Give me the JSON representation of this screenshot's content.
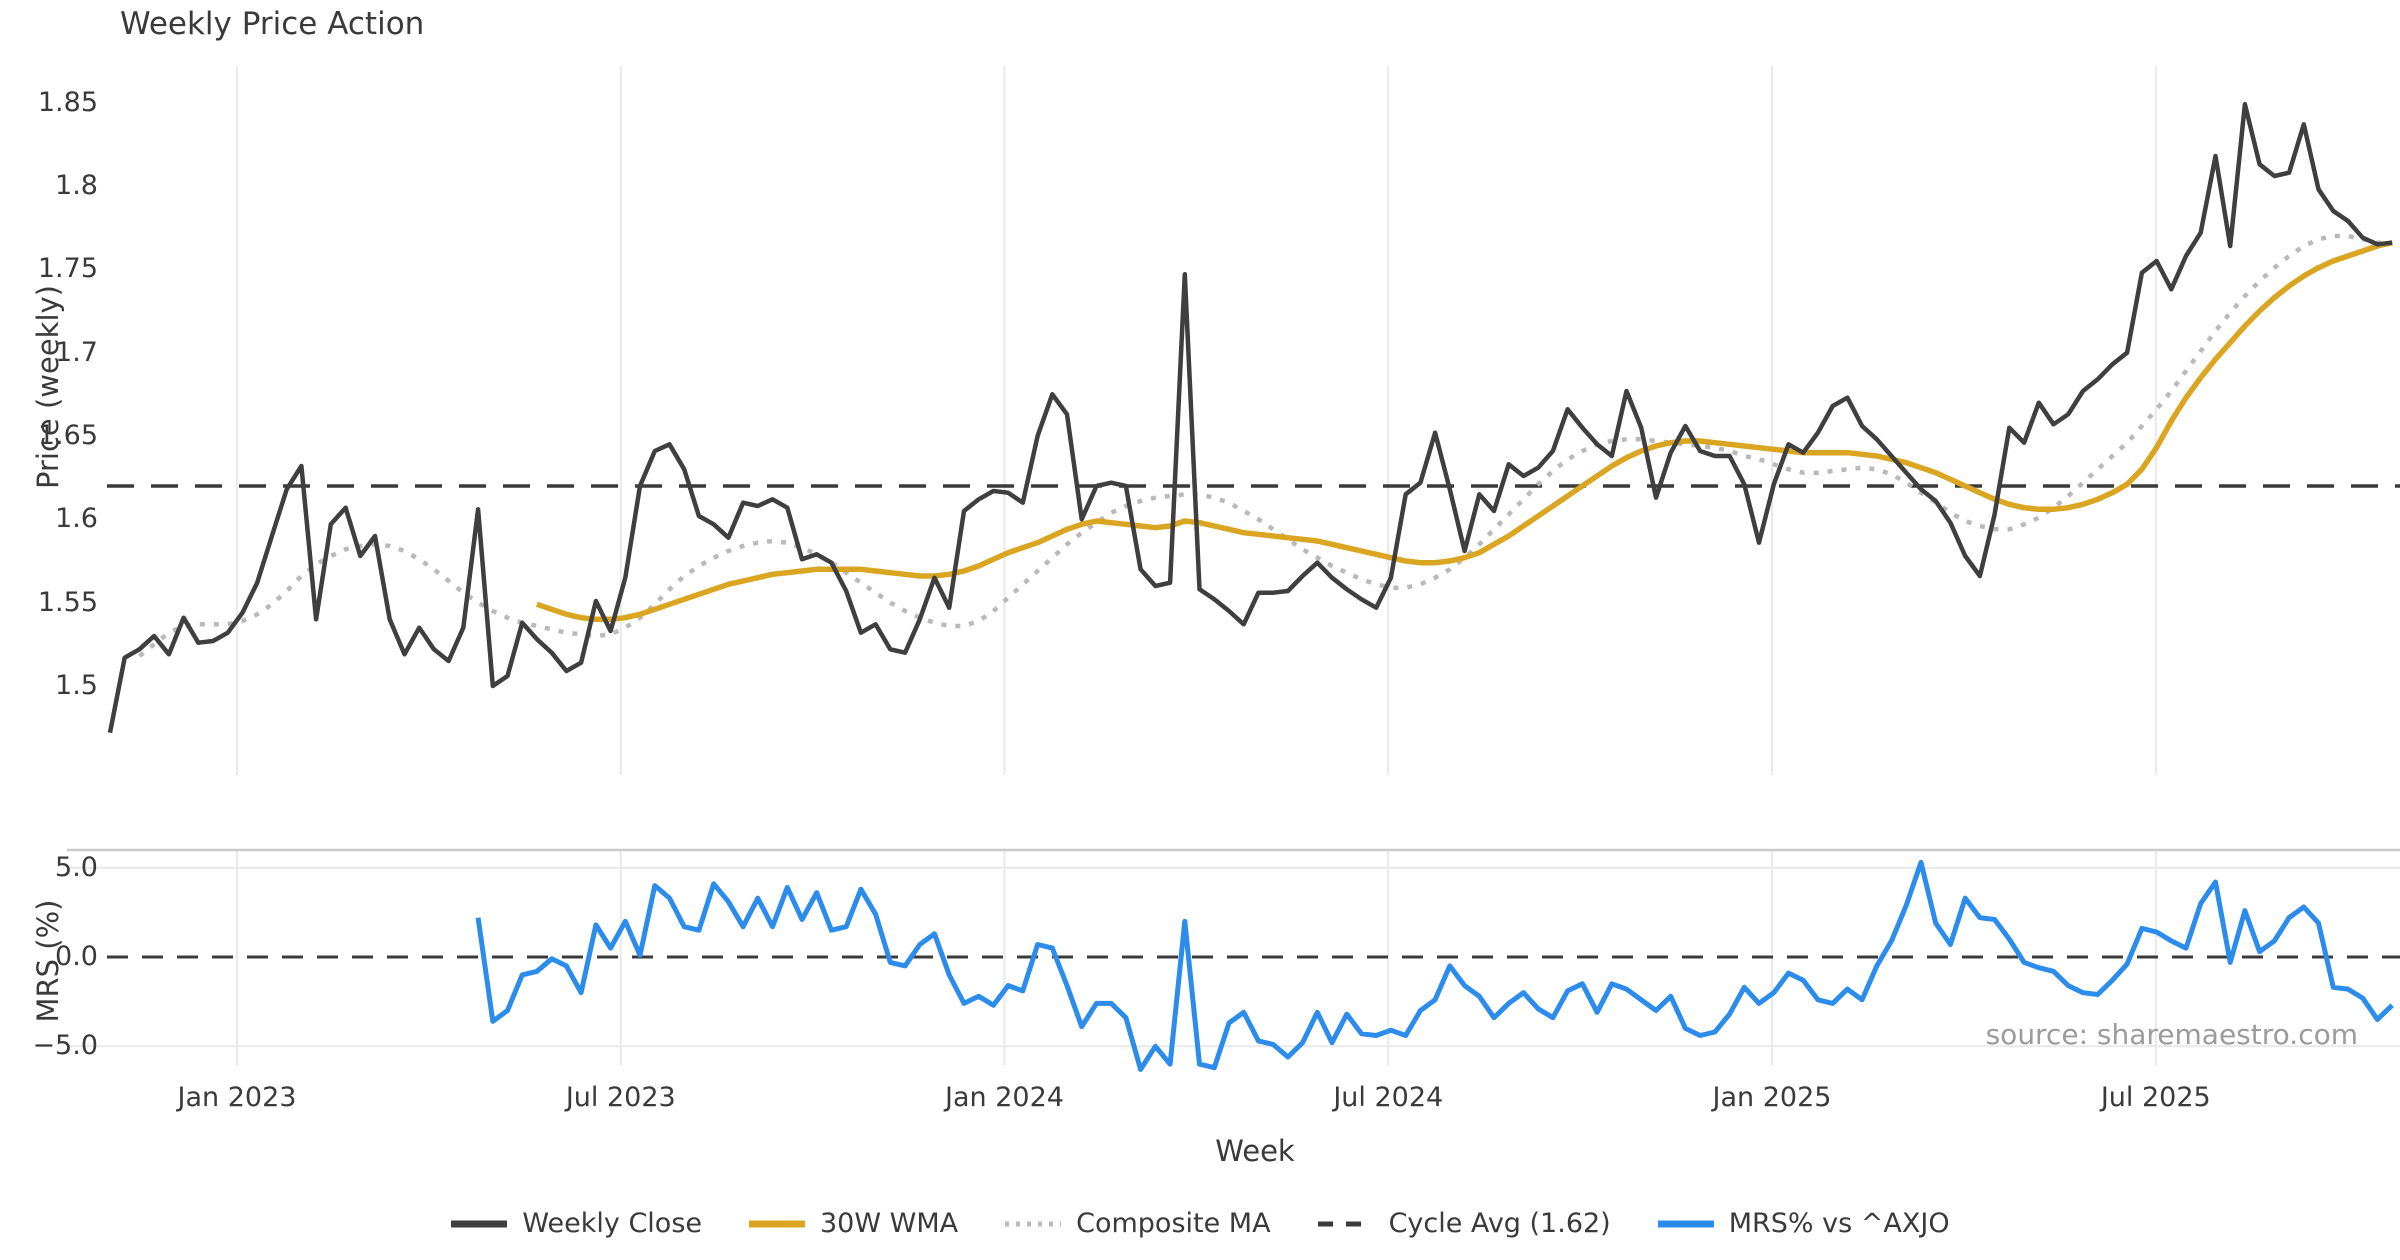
{
  "title": "Weekly Price Action",
  "source_note": "source: sharemaestro.com",
  "colors": {
    "close": "#3f3f3f",
    "wma": "#DAA520",
    "composite": "#b9b9b9",
    "cycle_avg": "#3a3a3a",
    "mrs": "#2b8ceb",
    "gridline": "#e9e9e9",
    "panel_border": "#c9c9c9",
    "text": "#3a3a3a",
    "muted_text": "#9b9b9b"
  },
  "chart_data": {
    "type": "line",
    "title": "Weekly Price Action",
    "xlabel": "Week",
    "grid": "vertical-both-panels",
    "legend_position": "bottom-center",
    "x_ticks": [
      {
        "t": 2023.0,
        "label": "Jan 2023"
      },
      {
        "t": 2023.5,
        "label": "Jul 2023"
      },
      {
        "t": 2024.0,
        "label": "Jan 2024"
      },
      {
        "t": 2024.5,
        "label": "Jul 2024"
      },
      {
        "t": 2025.0,
        "label": "Jan 2025"
      },
      {
        "t": 2025.5,
        "label": "Jul 2025"
      }
    ],
    "x_range": [
      2022.83,
      2025.82
    ],
    "panels": [
      {
        "name": "price",
        "ylabel": "Price (weekly)",
        "ylim": [
          1.447,
          1.872
        ],
        "yticks": [
          {
            "v": 1.5,
            "label": "1.5"
          },
          {
            "v": 1.55,
            "label": "1.55"
          },
          {
            "v": 1.6,
            "label": "1.6"
          },
          {
            "v": 1.65,
            "label": "1.65"
          },
          {
            "v": 1.7,
            "label": "1.7"
          },
          {
            "v": 1.75,
            "label": "1.75"
          },
          {
            "v": 1.8,
            "label": "1.8"
          },
          {
            "v": 1.85,
            "label": "1.85"
          }
        ],
        "cycle_avg_value": 1.62,
        "series": [
          {
            "name": "Weekly Close",
            "style": "solid",
            "color_key": "close",
            "width": 4.5,
            "t_start": 2022.8345,
            "t_step": 0.019184,
            "values": [
              1.472,
              1.517,
              1.522,
              1.53,
              1.519,
              1.541,
              1.526,
              1.527,
              1.532,
              1.544,
              1.562,
              1.59,
              1.618,
              1.632,
              1.54,
              1.597,
              1.607,
              1.578,
              1.59,
              1.54,
              1.519,
              1.535,
              1.522,
              1.515,
              1.535,
              1.606,
              1.5,
              1.506,
              1.538,
              1.528,
              1.52,
              1.509,
              1.514,
              1.551,
              1.533,
              1.565,
              1.62,
              1.641,
              1.645,
              1.63,
              1.602,
              1.597,
              1.589,
              1.61,
              1.608,
              1.612,
              1.607,
              1.576,
              1.579,
              1.574,
              1.557,
              1.532,
              1.537,
              1.522,
              1.52,
              1.54,
              1.565,
              1.547,
              1.605,
              1.612,
              1.617,
              1.616,
              1.61,
              1.65,
              1.675,
              1.663,
              1.6,
              1.62,
              1.622,
              1.62,
              1.57,
              1.56,
              1.562,
              1.747,
              1.558,
              1.552,
              1.545,
              1.537,
              1.556,
              1.556,
              1.557,
              1.566,
              1.574,
              1.565,
              1.558,
              1.552,
              1.547,
              1.565,
              1.615,
              1.622,
              1.652,
              1.618,
              1.581,
              1.615,
              1.605,
              1.633,
              1.626,
              1.631,
              1.641,
              1.666,
              1.655,
              1.645,
              1.638,
              1.677,
              1.655,
              1.613,
              1.64,
              1.656,
              1.641,
              1.638,
              1.638,
              1.621,
              1.586,
              1.621,
              1.645,
              1.64,
              1.652,
              1.668,
              1.673,
              1.656,
              1.648,
              1.638,
              1.628,
              1.618,
              1.611,
              1.598,
              1.578,
              1.566,
              1.603,
              1.655,
              1.646,
              1.67,
              1.657,
              1.663,
              1.677,
              1.684,
              1.693,
              1.7,
              1.748,
              1.755,
              1.738,
              1.758,
              1.772,
              1.818,
              1.764,
              1.849,
              1.813,
              1.806,
              1.808,
              1.837,
              1.798,
              1.785,
              1.779,
              1.769,
              1.765,
              1.766
            ]
          },
          {
            "name": "30W WMA",
            "style": "solid",
            "color_key": "wma",
            "width": 5.5,
            "t_start": 2023.3908,
            "t_step": 0.019184,
            "values": [
              1.549,
              1.546,
              1.543,
              1.541,
              1.54,
              1.54,
              1.541,
              1.543,
              1.546,
              1.549,
              1.552,
              1.555,
              1.558,
              1.561,
              1.563,
              1.565,
              1.567,
              1.568,
              1.569,
              1.57,
              1.57,
              1.57,
              1.57,
              1.569,
              1.568,
              1.567,
              1.566,
              1.566,
              1.567,
              1.569,
              1.572,
              1.576,
              1.58,
              1.583,
              1.586,
              1.59,
              1.594,
              1.597,
              1.599,
              1.598,
              1.597,
              1.596,
              1.595,
              1.596,
              1.599,
              1.598,
              1.596,
              1.594,
              1.592,
              1.591,
              1.59,
              1.589,
              1.588,
              1.587,
              1.585,
              1.583,
              1.581,
              1.579,
              1.577,
              1.575,
              1.574,
              1.574,
              1.575,
              1.577,
              1.58,
              1.585,
              1.59,
              1.596,
              1.602,
              1.608,
              1.614,
              1.62,
              1.626,
              1.632,
              1.637,
              1.641,
              1.644,
              1.646,
              1.647,
              1.647,
              1.646,
              1.645,
              1.644,
              1.643,
              1.642,
              1.641,
              1.64,
              1.64,
              1.64,
              1.64,
              1.639,
              1.638,
              1.636,
              1.634,
              1.631,
              1.628,
              1.624,
              1.62,
              1.616,
              1.612,
              1.609,
              1.607,
              1.606,
              1.606,
              1.607,
              1.609,
              1.612,
              1.616,
              1.621,
              1.63,
              1.643,
              1.659,
              1.673,
              1.685,
              1.696,
              1.706,
              1.716,
              1.725,
              1.733,
              1.74,
              1.746,
              1.751,
              1.755,
              1.758,
              1.761,
              1.764,
              1.766
            ]
          },
          {
            "name": "Composite MA",
            "style": "dotted",
            "color_key": "composite",
            "width": 4.5,
            "t_start": 2022.8729,
            "t_step": 0.019184,
            "values": [
              1.518,
              1.525,
              1.532,
              1.536,
              1.537,
              1.537,
              1.537,
              1.539,
              1.543,
              1.549,
              1.557,
              1.566,
              1.573,
              1.578,
              1.582,
              1.584,
              1.585,
              1.584,
              1.581,
              1.576,
              1.57,
              1.563,
              1.556,
              1.55,
              1.545,
              1.541,
              1.538,
              1.536,
              1.534,
              1.532,
              1.531,
              1.53,
              1.531,
              1.535,
              1.541,
              1.549,
              1.558,
              1.566,
              1.572,
              1.577,
              1.581,
              1.584,
              1.586,
              1.587,
              1.586,
              1.583,
              1.579,
              1.574,
              1.568,
              1.562,
              1.556,
              1.55,
              1.545,
              1.541,
              1.538,
              1.536,
              1.536,
              1.539,
              1.545,
              1.553,
              1.561,
              1.569,
              1.577,
              1.585,
              1.592,
              1.598,
              1.604,
              1.608,
              1.611,
              1.613,
              1.614,
              1.615,
              1.615,
              1.613,
              1.61,
              1.605,
              1.6,
              1.594,
              1.588,
              1.582,
              1.577,
              1.572,
              1.568,
              1.564,
              1.561,
              1.559,
              1.559,
              1.561,
              1.565,
              1.57,
              1.577,
              1.585,
              1.594,
              1.603,
              1.612,
              1.621,
              1.629,
              1.636,
              1.641,
              1.645,
              1.647,
              1.648,
              1.648,
              1.647,
              1.646,
              1.645,
              1.644,
              1.643,
              1.641,
              1.638,
              1.636,
              1.633,
              1.63,
              1.628,
              1.628,
              1.629,
              1.63,
              1.631,
              1.63,
              1.627,
              1.622,
              1.616,
              1.61,
              1.604,
              1.599,
              1.596,
              1.594,
              1.594,
              1.597,
              1.601,
              1.607,
              1.614,
              1.622,
              1.63,
              1.638,
              1.646,
              1.656,
              1.666,
              1.677,
              1.689,
              1.701,
              1.713,
              1.724,
              1.734,
              1.743,
              1.751,
              1.758,
              1.764,
              1.768,
              1.77,
              1.77,
              1.768,
              1.766,
              1.766
            ]
          },
          {
            "name": "Cycle Avg (1.62)",
            "style": "dashed",
            "color_key": "cycle_avg",
            "width": 3.5,
            "constant": 1.62
          }
        ]
      },
      {
        "name": "mrs",
        "ylabel": "MRS (%)",
        "ylim": [
          -6.1,
          6.0
        ],
        "yticks": [
          {
            "v": 5,
            "label": "5.0"
          },
          {
            "v": 0,
            "label": "0.0"
          },
          {
            "v": -5,
            "label": "−5.0"
          }
        ],
        "zero_line": 0,
        "series": [
          {
            "name": "MRS% vs ^AXJO",
            "style": "solid",
            "color_key": "mrs",
            "width": 5,
            "t_start": 2023.3141,
            "t_step": 0.019184,
            "values": [
              2.2,
              -3.6,
              -3.0,
              -1.0,
              -0.8,
              -0.1,
              -0.5,
              -2.0,
              1.8,
              0.5,
              2.0,
              0.1,
              4.0,
              3.3,
              1.7,
              1.5,
              4.1,
              3.1,
              1.7,
              3.3,
              1.7,
              3.9,
              2.1,
              3.6,
              1.5,
              1.7,
              3.8,
              2.4,
              -0.3,
              -0.5,
              0.7,
              1.3,
              -1.0,
              -2.6,
              -2.2,
              -2.7,
              -1.6,
              -1.9,
              0.7,
              0.5,
              -1.6,
              -3.9,
              -2.6,
              -2.6,
              -3.4,
              -6.3,
              -5.0,
              -6.0,
              2.0,
              -6.0,
              -6.2,
              -3.7,
              -3.1,
              -4.7,
              -4.9,
              -5.6,
              -4.8,
              -3.1,
              -4.8,
              -3.2,
              -4.3,
              -4.4,
              -4.1,
              -4.4,
              -3.0,
              -2.4,
              -0.5,
              -1.6,
              -2.2,
              -3.4,
              -2.6,
              -2.0,
              -2.9,
              -3.4,
              -1.9,
              -1.5,
              -3.1,
              -1.5,
              -1.8,
              -2.4,
              -3.0,
              -2.2,
              -4.0,
              -4.4,
              -4.2,
              -3.2,
              -1.7,
              -2.6,
              -2.0,
              -0.9,
              -1.3,
              -2.4,
              -2.6,
              -1.8,
              -2.4,
              -0.5,
              0.9,
              2.9,
              5.3,
              1.9,
              0.7,
              3.3,
              2.2,
              2.1,
              1.0,
              -0.3,
              -0.6,
              -0.8,
              -1.6,
              -2.0,
              -2.1,
              -1.3,
              -0.4,
              1.6,
              1.4,
              0.9,
              0.5,
              3.0,
              4.2,
              -0.3,
              2.6,
              0.3,
              0.9,
              2.2,
              2.8,
              1.9,
              -1.7,
              -1.8,
              -2.3,
              -3.5,
              -2.7
            ]
          }
        ]
      }
    ],
    "legend": [
      {
        "label": "Weekly Close",
        "style": "solid",
        "color_key": "close"
      },
      {
        "label": "30W WMA",
        "style": "solid",
        "color_key": "wma"
      },
      {
        "label": "Composite MA",
        "style": "dotted",
        "color_key": "composite"
      },
      {
        "label": "Cycle Avg (1.62)",
        "style": "dashed",
        "color_key": "cycle_avg"
      },
      {
        "label": "MRS% vs ^AXJO",
        "style": "solid",
        "color_key": "mrs"
      }
    ]
  }
}
